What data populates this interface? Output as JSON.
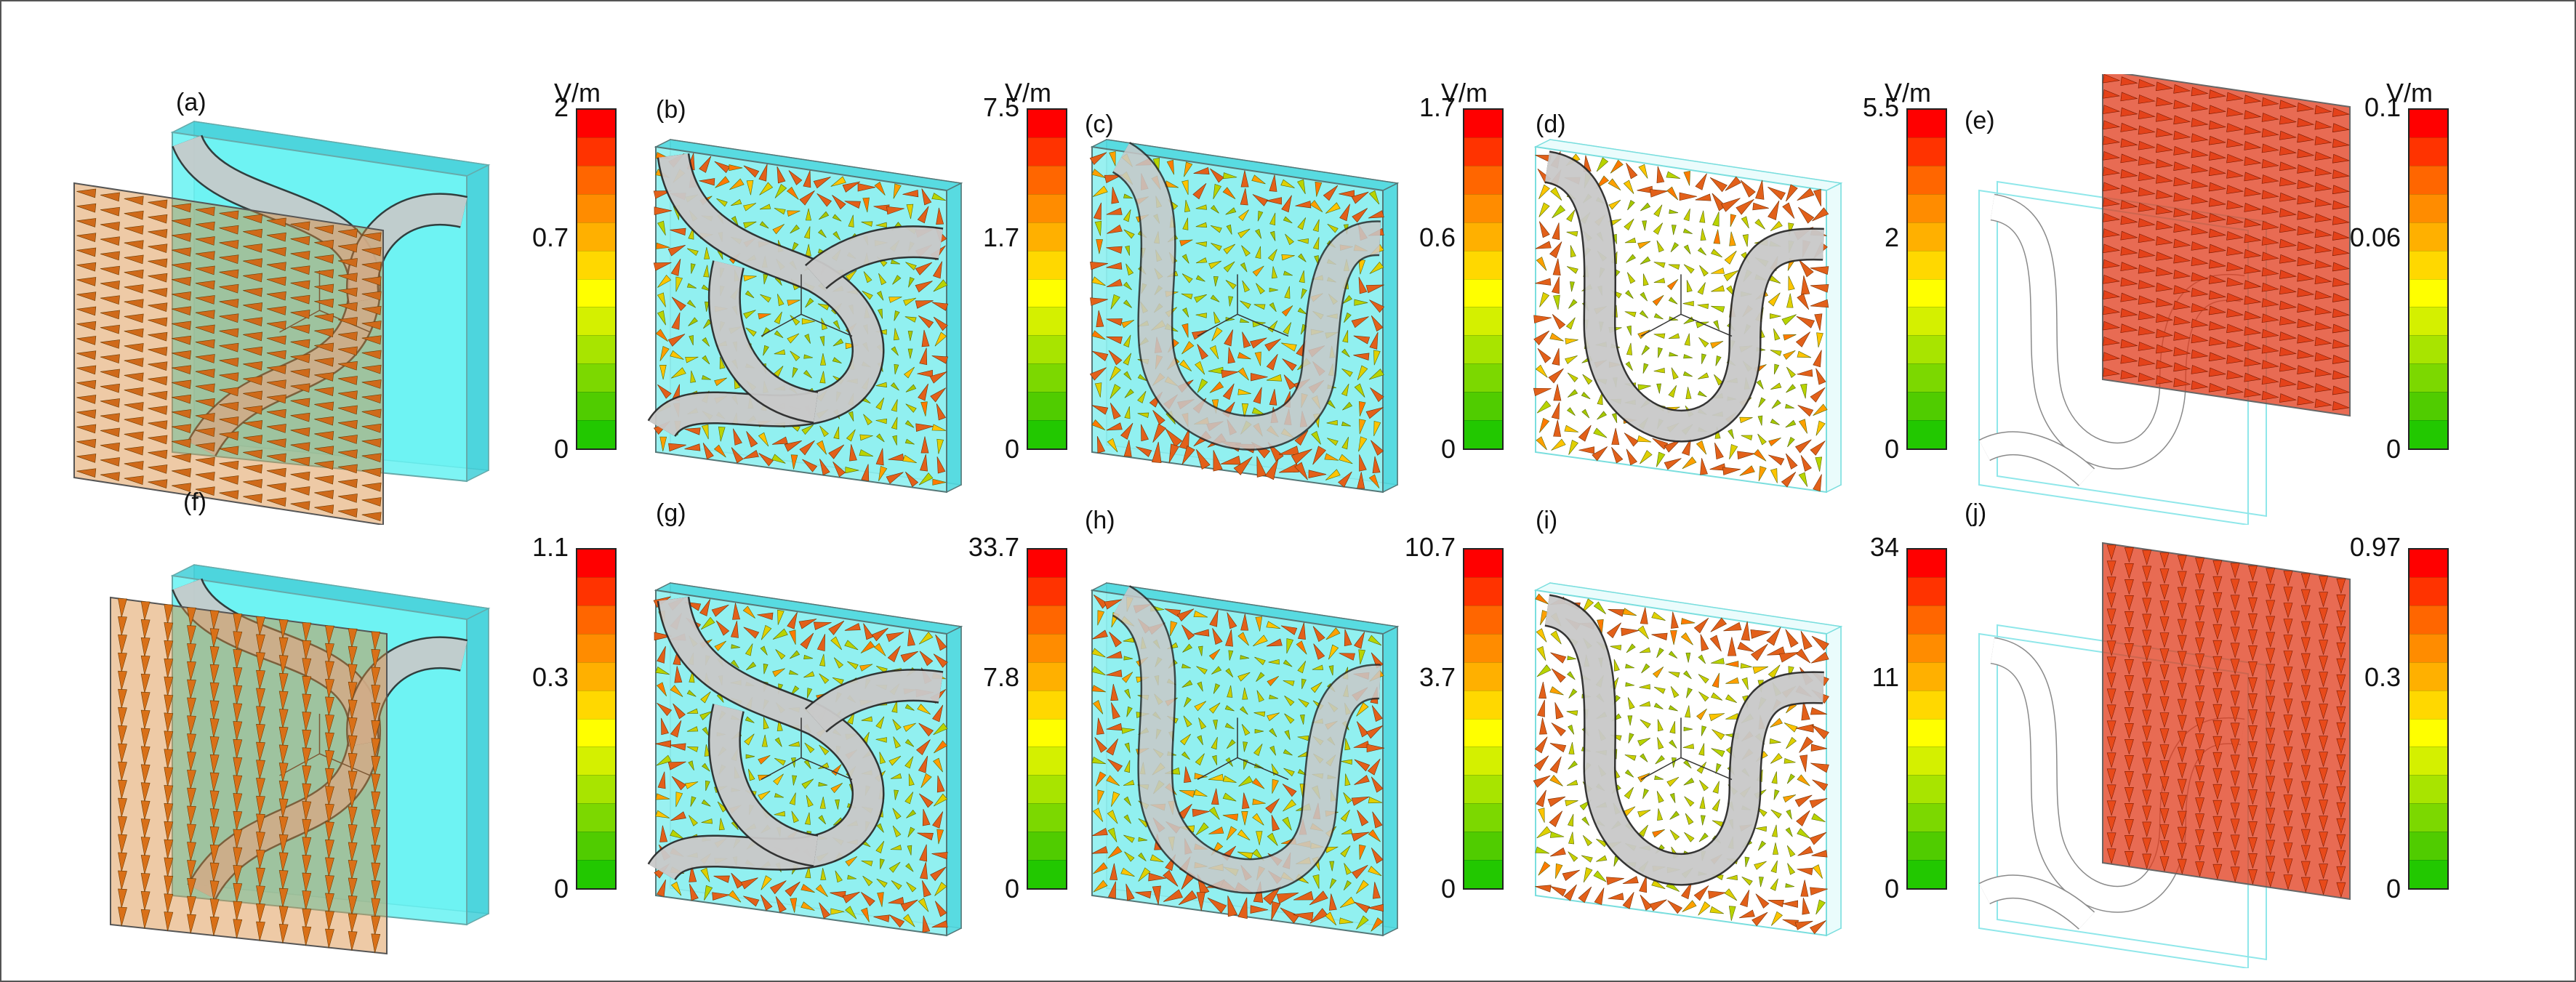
{
  "colorbar_colors": [
    "#ff0000",
    "#ff3300",
    "#ff6600",
    "#ff8c00",
    "#ffb000",
    "#ffd800",
    "#ffff00",
    "#d4f000",
    "#a8e400",
    "#7cd800",
    "#50cc00",
    "#22c800"
  ],
  "panels": [
    {
      "label": "(a)",
      "type": "incident",
      "orient": "h",
      "unit": "V/m",
      "ticks": [
        "2",
        "0.7",
        "0"
      ]
    },
    {
      "label": "(b)",
      "type": "circuit",
      "circuit": "b",
      "unit": "V/m",
      "ticks": [
        "7.5",
        "1.7",
        "0"
      ]
    },
    {
      "label": "(c)",
      "type": "circuit",
      "circuit": "c",
      "unit": "V/m",
      "ticks": [
        "1.7",
        "0.6",
        "0"
      ]
    },
    {
      "label": "(d)",
      "type": "circuit",
      "circuit": "d",
      "unit": "V/m",
      "ticks": [
        "5.5",
        "2",
        "0"
      ]
    },
    {
      "label": "(e)",
      "type": "transmitted",
      "orient": "h",
      "unit": "V/m",
      "ticks": [
        "0.1",
        "0.06",
        "0"
      ]
    },
    {
      "label": "(f)",
      "type": "incident",
      "orient": "v",
      "unit": "",
      "ticks": [
        "1.1",
        "0.3",
        "0"
      ]
    },
    {
      "label": "(g)",
      "type": "circuit",
      "circuit": "b",
      "unit": "",
      "ticks": [
        "33.7",
        "7.8",
        "0"
      ]
    },
    {
      "label": "(h)",
      "type": "circuit",
      "circuit": "c",
      "unit": "",
      "ticks": [
        "10.7",
        "3.7",
        "0"
      ]
    },
    {
      "label": "(i)",
      "type": "circuit",
      "circuit": "d",
      "unit": "",
      "ticks": [
        "34",
        "11",
        "0"
      ]
    },
    {
      "label": "(j)",
      "type": "transmitted",
      "orient": "v",
      "unit": "",
      "ticks": [
        "0.97",
        "0.3",
        "0"
      ]
    }
  ]
}
